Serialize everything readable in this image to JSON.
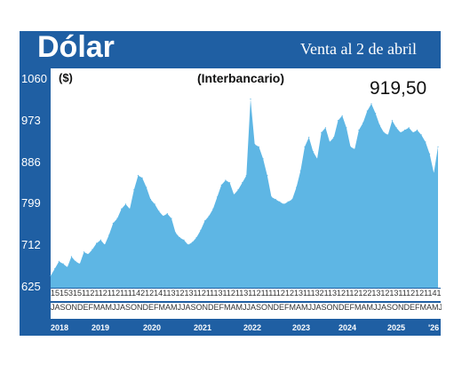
{
  "header": {
    "title": "Dólar",
    "subtitle": "Venta al 2 de abril"
  },
  "chart_data": {
    "type": "area",
    "unit_label": "($)",
    "annotation": "(Interbancario)",
    "last_value_label": "919,50",
    "ylim": [
      625,
      1060
    ],
    "yticks": [
      "625",
      "712",
      "799",
      "886",
      "973",
      "1060"
    ],
    "x": [
      "2018-07",
      "2018-08",
      "2018-09",
      "2018-10",
      "2018-11",
      "2018-12",
      "2019-01",
      "2019-02",
      "2019-03",
      "2019-04",
      "2019-05",
      "2019-06",
      "2019-07",
      "2019-08",
      "2019-09",
      "2019-10",
      "2019-11",
      "2019-12",
      "2020-01",
      "2020-02",
      "2020-03",
      "2020-04",
      "2020-05",
      "2020-06",
      "2020-07",
      "2020-08",
      "2020-09",
      "2020-10",
      "2020-11",
      "2020-12",
      "2021-01",
      "2021-02",
      "2021-03",
      "2021-04",
      "2021-05",
      "2021-06",
      "2021-07",
      "2021-08",
      "2021-09",
      "2021-10",
      "2021-11",
      "2021-12",
      "2022-01",
      "2022-02",
      "2022-03",
      "2022-04",
      "2022-05",
      "2022-06",
      "2022-07",
      "2022-08",
      "2022-09",
      "2022-10",
      "2022-11",
      "2022-12",
      "2023-01",
      "2023-02",
      "2023-03",
      "2023-04",
      "2023-05",
      "2023-06",
      "2023-07",
      "2023-08",
      "2023-09",
      "2023-10",
      "2023-11",
      "2023-12",
      "2024-01",
      "2024-02",
      "2024-03",
      "2024-04",
      "2024-05",
      "2024-06",
      "2024-07",
      "2024-08",
      "2024-09",
      "2024-10",
      "2024-11",
      "2024-12",
      "2025-01",
      "2025-02",
      "2025-03",
      "2025-04",
      "2025-05",
      "2025-06",
      "2025-07",
      "2025-08",
      "2025-09",
      "2025-10",
      "2025-11",
      "2025-12",
      "2026-01",
      "2026-02",
      "2026-03",
      "2026-04"
    ],
    "values": [
      650,
      665,
      680,
      675,
      668,
      690,
      680,
      675,
      700,
      695,
      705,
      718,
      725,
      715,
      735,
      760,
      770,
      790,
      800,
      790,
      830,
      860,
      855,
      835,
      810,
      800,
      785,
      775,
      780,
      770,
      740,
      730,
      725,
      715,
      720,
      730,
      745,
      765,
      775,
      790,
      815,
      840,
      850,
      845,
      820,
      830,
      845,
      860,
      1020,
      925,
      920,
      895,
      860,
      815,
      810,
      805,
      800,
      805,
      810,
      835,
      870,
      920,
      940,
      910,
      895,
      950,
      960,
      930,
      940,
      975,
      985,
      960,
      920,
      915,
      955,
      970,
      995,
      1010,
      990,
      965,
      950,
      945,
      975,
      960,
      950,
      955,
      960,
      950,
      955,
      945,
      930,
      905,
      865,
      920
    ],
    "days_row": "1515315112112112111142121411312131121113112113112111112121311132113121121221312131112121141223312111113111311212111312122",
    "months_row": "JASONDEFMAMJJASONDEFMAMJJASONDEFMAMJJASONDEFMAMJJASONDEFMAMJJASONDEFMAMJJASONDEFMAMJJASONDEFMA",
    "years": [
      "2018",
      "2019",
      "2020",
      "2021",
      "2022",
      "2023",
      "2024",
      "2025",
      "'26"
    ]
  },
  "colors": {
    "frame": "#1f5fa3",
    "area": "#5eb6e4"
  }
}
